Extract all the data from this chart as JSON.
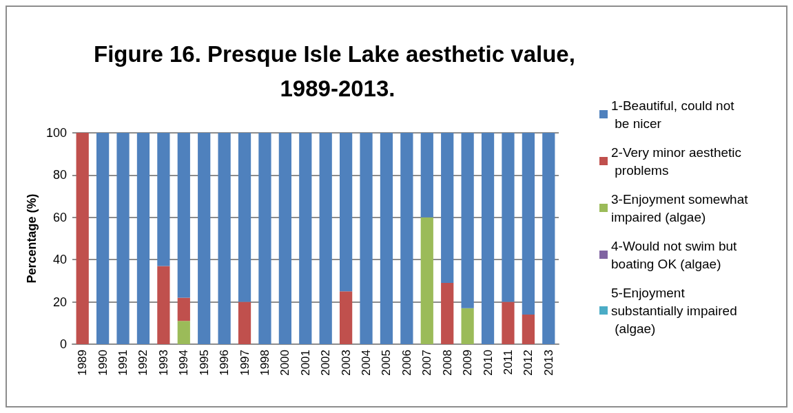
{
  "chart_data": {
    "type": "bar",
    "title": "Figure 16. Presque Isle Lake aesthetic value, 1989-2013.",
    "ylabel": "Percentage (%)",
    "categories": [
      "1989",
      "1990",
      "1991",
      "1992",
      "1993",
      "1994",
      "1995",
      "1996",
      "1997",
      "1998",
      "2000",
      "2001",
      "2002",
      "2003",
      "2004",
      "2005",
      "2006",
      "2007",
      "2008",
      "2009",
      "2010",
      "2011",
      "2012",
      "2013"
    ],
    "stacked": true,
    "ylim": [
      0,
      100
    ],
    "yticks": [
      0,
      20,
      40,
      60,
      80,
      100
    ],
    "grid": "y",
    "legend": "right",
    "series": [
      {
        "name": "5-Enjoyment substantially impaired (algae)",
        "color": "#4bacc6",
        "values": [
          0,
          0,
          0,
          0,
          0,
          0,
          0,
          0,
          0,
          0,
          0,
          0,
          0,
          0,
          0,
          0,
          0,
          0,
          0,
          0,
          0,
          0,
          0,
          0
        ]
      },
      {
        "name": "4-Would not swim but boating OK (algae)",
        "color": "#8064a2",
        "values": [
          0,
          0,
          0,
          0,
          0,
          0,
          0,
          0,
          0,
          0,
          0,
          0,
          0,
          0,
          0,
          0,
          0,
          0,
          0,
          0,
          0,
          0,
          0,
          0
        ]
      },
      {
        "name": "3-Enjoyment somewhat impaired (algae)",
        "color": "#9bbb59",
        "values": [
          0,
          0,
          0,
          0,
          0,
          11,
          0,
          0,
          0,
          0,
          0,
          0,
          0,
          0,
          0,
          0,
          0,
          60,
          0,
          17,
          0,
          0,
          0,
          0
        ]
      },
      {
        "name": "2-Very minor aesthetic problems",
        "color": "#c0504d",
        "values": [
          100,
          0,
          0,
          0,
          37,
          11,
          0,
          0,
          20,
          0,
          0,
          0,
          0,
          25,
          0,
          0,
          0,
          0,
          29,
          0,
          0,
          20,
          14,
          0
        ]
      },
      {
        "name": "1-Beautiful, could not be nicer",
        "color": "#4f81bd",
        "values": [
          0,
          100,
          100,
          100,
          63,
          78,
          100,
          100,
          80,
          100,
          100,
          100,
          100,
          75,
          100,
          100,
          100,
          40,
          71,
          83,
          100,
          80,
          86,
          100
        ]
      }
    ]
  }
}
